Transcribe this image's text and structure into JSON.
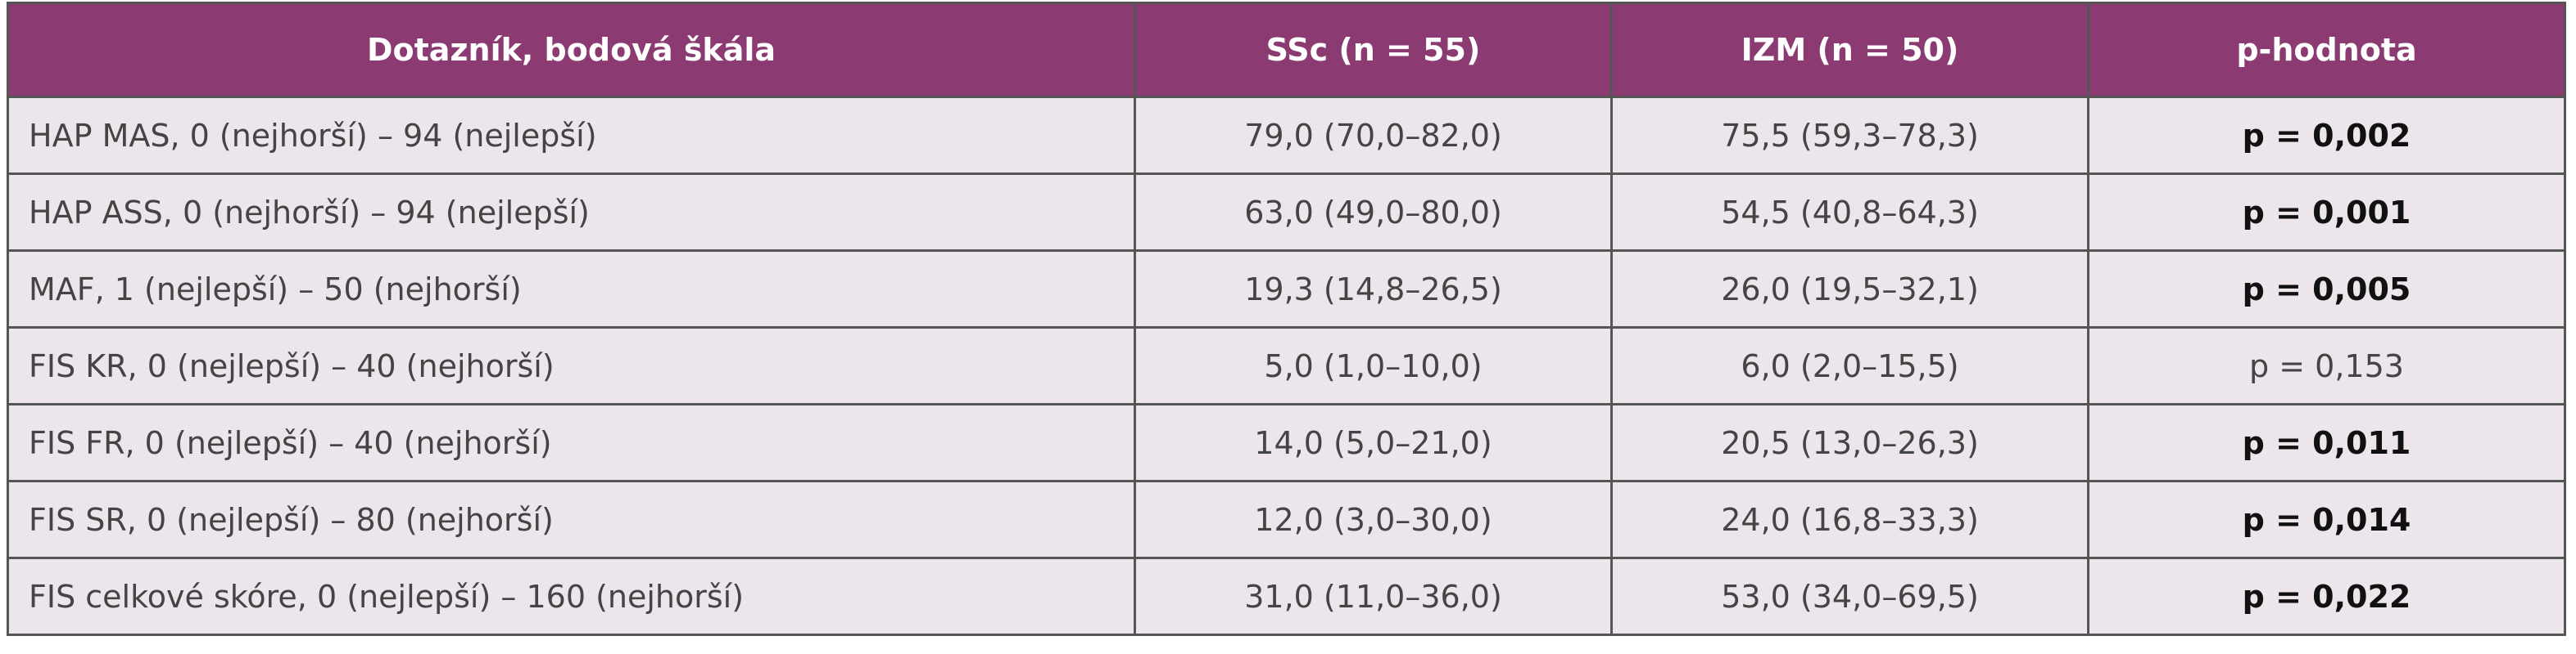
{
  "table": {
    "header": [
      "Dotazník, bodová škála",
      "SSc (n = 55)",
      "IZM (n = 50)",
      "p-hodnota"
    ],
    "rows": [
      [
        "HAP MAS, 0 (nejhorší) – 94 (nejlepší)",
        "79,0 (70,0–82,0)",
        "75,5 (59,3–78,3)",
        {
          "text": "p = 0,002",
          "bold": true
        }
      ],
      [
        "HAP ASS, 0 (nejhorší) – 94 (nejlepší)",
        "63,0 (49,0–80,0)",
        "54,5 (40,8–64,3)",
        {
          "text": "p = 0,001",
          "bold": true
        }
      ],
      [
        "MAF, 1 (nejlepší) – 50 (nejhorší)",
        "19,3 (14,8–26,5)",
        "26,0 (19,5–32,1)",
        {
          "text": "p = 0,005",
          "bold": true
        }
      ],
      [
        "FIS KR, 0 (nejlepší) – 40 (nejhorší)",
        "5,0 (1,0–10,0)",
        "6,0 (2,0–15,5)",
        {
          "text": "p = 0,153",
          "bold": false
        }
      ],
      [
        "FIS FR, 0 (nejlepší) – 40 (nejhorší)",
        "14,0 (5,0–21,0)",
        "20,5 (13,0–26,3)",
        {
          "text": "p = 0,011",
          "bold": true
        }
      ],
      [
        "FIS SR, 0 (nejlepší) – 80 (nejhorší)",
        "12,0 (3,0–30,0)",
        "24,0 (16,8–33,3)",
        {
          "text": "p = 0,014",
          "bold": true
        }
      ],
      [
        "FIS celkové skóre, 0 (nejlepší) – 160 (nejhorší)",
        "31,0 (11,0–36,0)",
        "53,0 (34,0–69,5)",
        {
          "text": "p = 0,022",
          "bold": true
        }
      ]
    ]
  }
}
